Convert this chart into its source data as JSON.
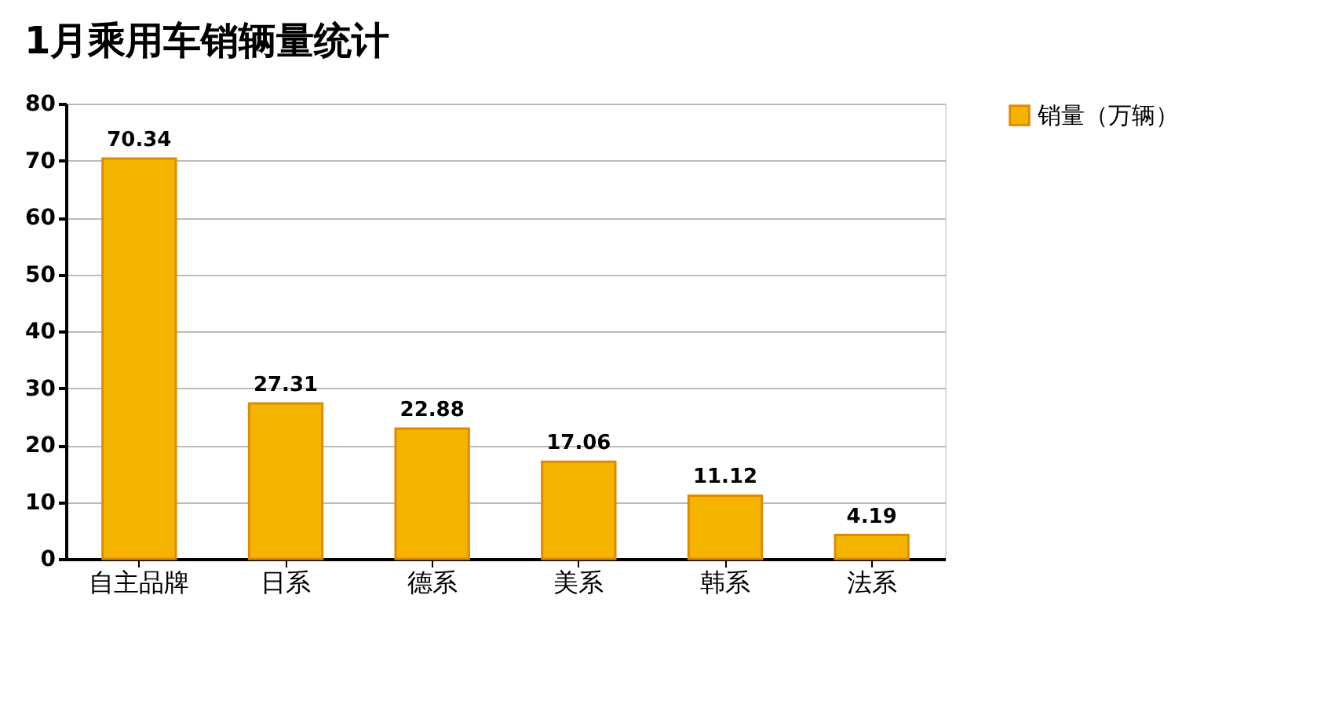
{
  "chart_data": {
    "type": "bar",
    "title": "1月乘用车销辆量统计",
    "categories": [
      "自主品牌",
      "日系",
      "德系",
      "美系",
      "韩系",
      "法系"
    ],
    "series": [
      {
        "name": "销量（万辆）",
        "color": "#f5b400",
        "values": [
          70.34,
          27.31,
          22.88,
          17.06,
          11.12,
          4.19
        ]
      }
    ],
    "ylim": [
      0,
      80
    ],
    "yticks": [
      0,
      10,
      20,
      30,
      40,
      50,
      60,
      70,
      80
    ],
    "grid": "y",
    "legend": "right",
    "data_labels": true
  }
}
